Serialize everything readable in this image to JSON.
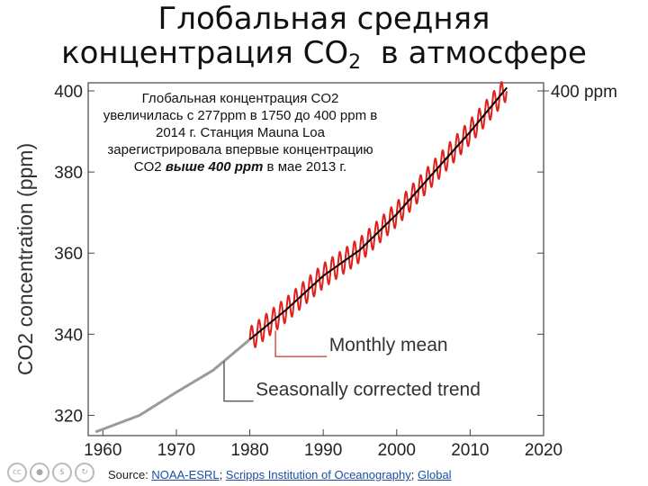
{
  "slide": {
    "title_line1": "Глобальная средняя",
    "title_line2_pre": "концентрация CO",
    "title_line2_sub": "2",
    "title_line2_post": "  в атмосфере"
  },
  "annotation": {
    "text_pre": "Глобальная концентрация CO2 увеличилась с 277ppm в 1750 до 400 ppm в 2014 г.  Станция Mauna Loa зарегистрировала впервые концентрацию CO2 ",
    "text_bold": "выше 400 ppm",
    "text_post": " в мае 2013 г."
  },
  "source": {
    "prefix": "Source: ",
    "link1": "NOAA-ESRL",
    "sep1": "; ",
    "link2": "Scripps Institution of Oceanography",
    "sep2": "; ",
    "link3": "Global"
  },
  "icons": [
    "cc-icon",
    "by-icon",
    "nc-icon",
    "sa-icon"
  ],
  "chart_data": {
    "type": "line",
    "title": "",
    "xlabel": "",
    "ylabel": "CO2 concentration (ppm)",
    "xlim": [
      1958,
      2020
    ],
    "ylim": [
      315,
      402
    ],
    "x_ticks": [
      1960,
      1970,
      1980,
      1990,
      2000,
      2010,
      2020
    ],
    "y_ticks": [
      320,
      340,
      360,
      380,
      400
    ],
    "right_label": "400 ppm",
    "right_label_value": 400,
    "series": [
      {
        "name": "Monthly mean",
        "color": "#e0201b",
        "seasonal_amplitude_ppm": 3,
        "years": [
          1980,
          1985,
          1990,
          1995,
          2000,
          2005,
          2010,
          2015
        ],
        "values": [
          338.7,
          346.1,
          354.4,
          360.8,
          369.6,
          379.8,
          389.9,
          400.8
        ]
      },
      {
        "name": "Seasonally corrected trend",
        "color": "#000000",
        "early_color": "#9a9a9a",
        "years": [
          1959,
          1965,
          1970,
          1975,
          1980,
          1985,
          1990,
          1995,
          2000,
          2005,
          2010,
          2015
        ],
        "values": [
          315.9,
          320.0,
          325.7,
          331.1,
          338.7,
          346.1,
          354.4,
          360.8,
          369.6,
          379.8,
          389.9,
          400.8
        ]
      }
    ],
    "annotations": [
      "Monthly mean",
      "Seasonally corrected trend"
    ],
    "grid": false,
    "legend": "none"
  }
}
